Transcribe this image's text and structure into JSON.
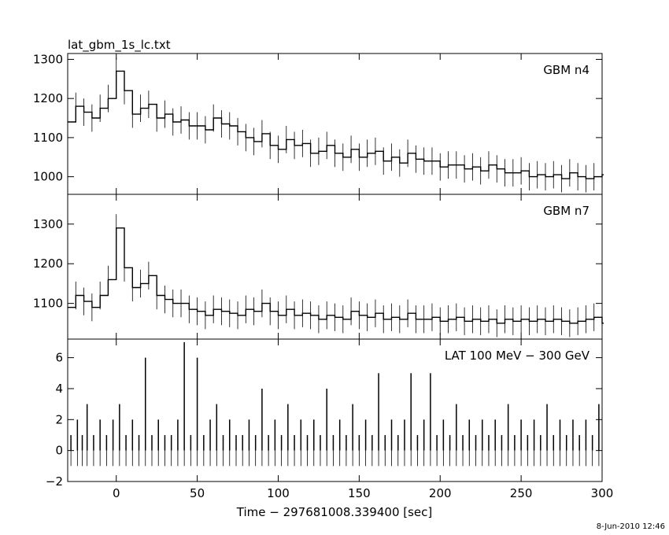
{
  "figure": {
    "title": "lat_gbm_1s_lc.txt",
    "xlabel": "Time − 297681008.339400 [sec]",
    "timestamp": "8-Jun-2010 12:46"
  },
  "chart_data": [
    {
      "type": "line",
      "name": "GBM n4",
      "xlim": [
        -30,
        300
      ],
      "ylim": [
        955,
        1315
      ],
      "yticks": [
        1000,
        1100,
        1200,
        1300
      ],
      "ytick_labels": [
        "1000",
        "1100",
        "1200",
        "1300"
      ],
      "grid": false,
      "x": [
        -30,
        -25,
        -20,
        -15,
        -10,
        -5,
        0,
        5,
        10,
        15,
        20,
        25,
        30,
        35,
        40,
        45,
        50,
        55,
        60,
        65,
        70,
        75,
        80,
        85,
        90,
        95,
        100,
        105,
        110,
        115,
        120,
        125,
        130,
        135,
        140,
        145,
        150,
        155,
        160,
        165,
        170,
        175,
        180,
        185,
        190,
        195,
        200,
        205,
        210,
        215,
        220,
        225,
        230,
        235,
        240,
        245,
        250,
        255,
        260,
        265,
        270,
        275,
        280,
        285,
        290,
        295,
        300
      ],
      "y": [
        1140,
        1180,
        1165,
        1150,
        1175,
        1200,
        1270,
        1220,
        1160,
        1175,
        1185,
        1150,
        1160,
        1140,
        1145,
        1130,
        1130,
        1120,
        1150,
        1135,
        1130,
        1115,
        1100,
        1090,
        1110,
        1080,
        1070,
        1095,
        1080,
        1085,
        1060,
        1065,
        1080,
        1060,
        1050,
        1070,
        1050,
        1060,
        1065,
        1040,
        1050,
        1035,
        1060,
        1045,
        1040,
        1040,
        1025,
        1030,
        1030,
        1020,
        1025,
        1015,
        1030,
        1020,
        1010,
        1010,
        1015,
        1000,
        1005,
        1000,
        1005,
        995,
        1010,
        1000,
        995,
        1000,
        1005
      ]
    },
    {
      "type": "line",
      "name": "GBM n7",
      "xlim": [
        -30,
        300
      ],
      "ylim": [
        1010,
        1375
      ],
      "yticks": [
        1100,
        1200,
        1300
      ],
      "ytick_labels": [
        "1100",
        "1200",
        "1300"
      ],
      "grid": false,
      "x": [
        -30,
        -25,
        -20,
        -15,
        -10,
        -5,
        0,
        5,
        10,
        15,
        20,
        25,
        30,
        35,
        40,
        45,
        50,
        55,
        60,
        65,
        70,
        75,
        80,
        85,
        90,
        95,
        100,
        105,
        110,
        115,
        120,
        125,
        130,
        135,
        140,
        145,
        150,
        155,
        160,
        165,
        170,
        175,
        180,
        185,
        190,
        195,
        200,
        205,
        210,
        215,
        220,
        225,
        230,
        235,
        240,
        245,
        250,
        255,
        260,
        265,
        270,
        275,
        280,
        285,
        290,
        295,
        300
      ],
      "y": [
        1090,
        1120,
        1105,
        1090,
        1120,
        1160,
        1290,
        1190,
        1140,
        1150,
        1170,
        1120,
        1110,
        1100,
        1100,
        1085,
        1080,
        1070,
        1085,
        1080,
        1075,
        1070,
        1085,
        1080,
        1100,
        1080,
        1070,
        1085,
        1070,
        1075,
        1070,
        1060,
        1070,
        1065,
        1060,
        1080,
        1070,
        1065,
        1075,
        1060,
        1065,
        1060,
        1075,
        1060,
        1060,
        1065,
        1055,
        1060,
        1065,
        1055,
        1060,
        1055,
        1060,
        1050,
        1060,
        1055,
        1060,
        1055,
        1060,
        1055,
        1060,
        1055,
        1050,
        1055,
        1060,
        1065,
        1050
      ]
    },
    {
      "type": "bar",
      "name": "LAT 100 MeV − 300 GeV",
      "xlim": [
        -30,
        300
      ],
      "ylim": [
        -2,
        7.2
      ],
      "yticks": [
        -2,
        0,
        2,
        4,
        6
      ],
      "ytick_labels": [
        "−2",
        "0",
        "2",
        "4",
        "6"
      ],
      "xticks": [
        0,
        50,
        100,
        150,
        200,
        250,
        300
      ],
      "xtick_labels": [
        "0",
        "50",
        "100",
        "150",
        "200",
        "250",
        "300"
      ],
      "grid": false,
      "x": [
        -28,
        -24,
        -21,
        -18,
        -14,
        -10,
        -6,
        -2,
        2,
        6,
        10,
        14,
        18,
        22,
        26,
        30,
        34,
        38,
        42,
        46,
        50,
        54,
        58,
        62,
        66,
        70,
        74,
        78,
        82,
        86,
        90,
        94,
        98,
        102,
        106,
        110,
        114,
        118,
        122,
        126,
        130,
        134,
        138,
        142,
        146,
        150,
        154,
        158,
        162,
        166,
        170,
        174,
        178,
        182,
        186,
        190,
        194,
        198,
        202,
        206,
        210,
        214,
        218,
        222,
        226,
        230,
        234,
        238,
        242,
        246,
        250,
        254,
        258,
        262,
        266,
        270,
        274,
        278,
        282,
        286,
        290,
        294,
        298
      ],
      "y": [
        1,
        2,
        1,
        3,
        1,
        2,
        1,
        2,
        3,
        1,
        2,
        1,
        6,
        1,
        2,
        1,
        1,
        2,
        7,
        1,
        6,
        1,
        2,
        3,
        1,
        2,
        1,
        1,
        2,
        1,
        4,
        1,
        2,
        1,
        3,
        1,
        2,
        1,
        2,
        1,
        4,
        1,
        2,
        1,
        3,
        1,
        2,
        1,
        5,
        1,
        2,
        1,
        2,
        5,
        1,
        2,
        5,
        1,
        2,
        1,
        3,
        1,
        2,
        1,
        2,
        1,
        2,
        1,
        3,
        1,
        2,
        1,
        2,
        1,
        3,
        1,
        2,
        1,
        2,
        1,
        2,
        1,
        3
      ]
    }
  ]
}
